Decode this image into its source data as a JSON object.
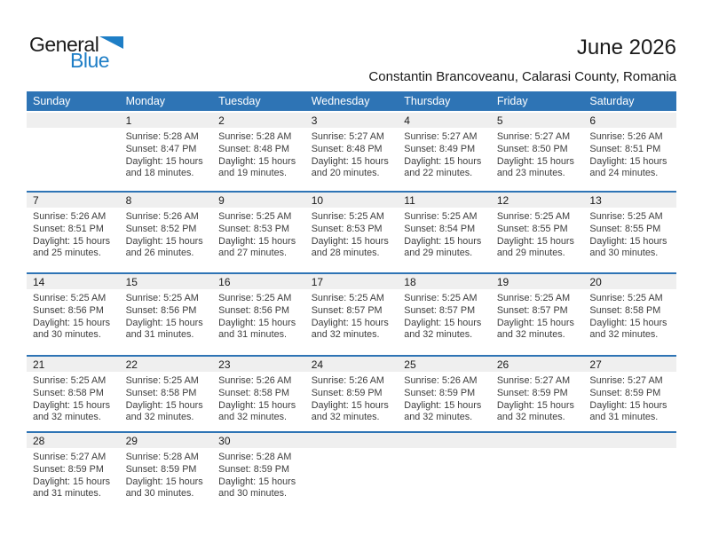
{
  "logo": {
    "general": "General",
    "blue": "Blue"
  },
  "header": {
    "title": "June 2026",
    "subtitle": "Constantin Brancoveanu, Calarasi County, Romania"
  },
  "colors": {
    "header_blue": "#2e74b5",
    "separator_blue": "#2e74b5",
    "band_gray": "#efefef",
    "logo_blue": "#1e7ec6",
    "text_dark": "#1a1a1a",
    "text_gray": "#3d3d3d"
  },
  "calendar": {
    "day_headers": [
      "Sunday",
      "Monday",
      "Tuesday",
      "Wednesday",
      "Thursday",
      "Friday",
      "Saturday"
    ],
    "weeks": [
      {
        "days": [
          {
            "date": "",
            "sunrise": "",
            "sunset": "",
            "daylight1": "",
            "daylight2": ""
          },
          {
            "date": "1",
            "sunrise": "Sunrise: 5:28 AM",
            "sunset": "Sunset: 8:47 PM",
            "daylight1": "Daylight: 15 hours",
            "daylight2": "and 18 minutes."
          },
          {
            "date": "2",
            "sunrise": "Sunrise: 5:28 AM",
            "sunset": "Sunset: 8:48 PM",
            "daylight1": "Daylight: 15 hours",
            "daylight2": "and 19 minutes."
          },
          {
            "date": "3",
            "sunrise": "Sunrise: 5:27 AM",
            "sunset": "Sunset: 8:48 PM",
            "daylight1": "Daylight: 15 hours",
            "daylight2": "and 20 minutes."
          },
          {
            "date": "4",
            "sunrise": "Sunrise: 5:27 AM",
            "sunset": "Sunset: 8:49 PM",
            "daylight1": "Daylight: 15 hours",
            "daylight2": "and 22 minutes."
          },
          {
            "date": "5",
            "sunrise": "Sunrise: 5:27 AM",
            "sunset": "Sunset: 8:50 PM",
            "daylight1": "Daylight: 15 hours",
            "daylight2": "and 23 minutes."
          },
          {
            "date": "6",
            "sunrise": "Sunrise: 5:26 AM",
            "sunset": "Sunset: 8:51 PM",
            "daylight1": "Daylight: 15 hours",
            "daylight2": "and 24 minutes."
          }
        ]
      },
      {
        "days": [
          {
            "date": "7",
            "sunrise": "Sunrise: 5:26 AM",
            "sunset": "Sunset: 8:51 PM",
            "daylight1": "Daylight: 15 hours",
            "daylight2": "and 25 minutes."
          },
          {
            "date": "8",
            "sunrise": "Sunrise: 5:26 AM",
            "sunset": "Sunset: 8:52 PM",
            "daylight1": "Daylight: 15 hours",
            "daylight2": "and 26 minutes."
          },
          {
            "date": "9",
            "sunrise": "Sunrise: 5:25 AM",
            "sunset": "Sunset: 8:53 PM",
            "daylight1": "Daylight: 15 hours",
            "daylight2": "and 27 minutes."
          },
          {
            "date": "10",
            "sunrise": "Sunrise: 5:25 AM",
            "sunset": "Sunset: 8:53 PM",
            "daylight1": "Daylight: 15 hours",
            "daylight2": "and 28 minutes."
          },
          {
            "date": "11",
            "sunrise": "Sunrise: 5:25 AM",
            "sunset": "Sunset: 8:54 PM",
            "daylight1": "Daylight: 15 hours",
            "daylight2": "and 29 minutes."
          },
          {
            "date": "12",
            "sunrise": "Sunrise: 5:25 AM",
            "sunset": "Sunset: 8:55 PM",
            "daylight1": "Daylight: 15 hours",
            "daylight2": "and 29 minutes."
          },
          {
            "date": "13",
            "sunrise": "Sunrise: 5:25 AM",
            "sunset": "Sunset: 8:55 PM",
            "daylight1": "Daylight: 15 hours",
            "daylight2": "and 30 minutes."
          }
        ]
      },
      {
        "days": [
          {
            "date": "14",
            "sunrise": "Sunrise: 5:25 AM",
            "sunset": "Sunset: 8:56 PM",
            "daylight1": "Daylight: 15 hours",
            "daylight2": "and 30 minutes."
          },
          {
            "date": "15",
            "sunrise": "Sunrise: 5:25 AM",
            "sunset": "Sunset: 8:56 PM",
            "daylight1": "Daylight: 15 hours",
            "daylight2": "and 31 minutes."
          },
          {
            "date": "16",
            "sunrise": "Sunrise: 5:25 AM",
            "sunset": "Sunset: 8:56 PM",
            "daylight1": "Daylight: 15 hours",
            "daylight2": "and 31 minutes."
          },
          {
            "date": "17",
            "sunrise": "Sunrise: 5:25 AM",
            "sunset": "Sunset: 8:57 PM",
            "daylight1": "Daylight: 15 hours",
            "daylight2": "and 32 minutes."
          },
          {
            "date": "18",
            "sunrise": "Sunrise: 5:25 AM",
            "sunset": "Sunset: 8:57 PM",
            "daylight1": "Daylight: 15 hours",
            "daylight2": "and 32 minutes."
          },
          {
            "date": "19",
            "sunrise": "Sunrise: 5:25 AM",
            "sunset": "Sunset: 8:57 PM",
            "daylight1": "Daylight: 15 hours",
            "daylight2": "and 32 minutes."
          },
          {
            "date": "20",
            "sunrise": "Sunrise: 5:25 AM",
            "sunset": "Sunset: 8:58 PM",
            "daylight1": "Daylight: 15 hours",
            "daylight2": "and 32 minutes."
          }
        ]
      },
      {
        "days": [
          {
            "date": "21",
            "sunrise": "Sunrise: 5:25 AM",
            "sunset": "Sunset: 8:58 PM",
            "daylight1": "Daylight: 15 hours",
            "daylight2": "and 32 minutes."
          },
          {
            "date": "22",
            "sunrise": "Sunrise: 5:25 AM",
            "sunset": "Sunset: 8:58 PM",
            "daylight1": "Daylight: 15 hours",
            "daylight2": "and 32 minutes."
          },
          {
            "date": "23",
            "sunrise": "Sunrise: 5:26 AM",
            "sunset": "Sunset: 8:58 PM",
            "daylight1": "Daylight: 15 hours",
            "daylight2": "and 32 minutes."
          },
          {
            "date": "24",
            "sunrise": "Sunrise: 5:26 AM",
            "sunset": "Sunset: 8:59 PM",
            "daylight1": "Daylight: 15 hours",
            "daylight2": "and 32 minutes."
          },
          {
            "date": "25",
            "sunrise": "Sunrise: 5:26 AM",
            "sunset": "Sunset: 8:59 PM",
            "daylight1": "Daylight: 15 hours",
            "daylight2": "and 32 minutes."
          },
          {
            "date": "26",
            "sunrise": "Sunrise: 5:27 AM",
            "sunset": "Sunset: 8:59 PM",
            "daylight1": "Daylight: 15 hours",
            "daylight2": "and 32 minutes."
          },
          {
            "date": "27",
            "sunrise": "Sunrise: 5:27 AM",
            "sunset": "Sunset: 8:59 PM",
            "daylight1": "Daylight: 15 hours",
            "daylight2": "and 31 minutes."
          }
        ]
      },
      {
        "days": [
          {
            "date": "28",
            "sunrise": "Sunrise: 5:27 AM",
            "sunset": "Sunset: 8:59 PM",
            "daylight1": "Daylight: 15 hours",
            "daylight2": "and 31 minutes."
          },
          {
            "date": "29",
            "sunrise": "Sunrise: 5:28 AM",
            "sunset": "Sunset: 8:59 PM",
            "daylight1": "Daylight: 15 hours",
            "daylight2": "and 30 minutes."
          },
          {
            "date": "30",
            "sunrise": "Sunrise: 5:28 AM",
            "sunset": "Sunset: 8:59 PM",
            "daylight1": "Daylight: 15 hours",
            "daylight2": "and 30 minutes."
          },
          {
            "date": "",
            "sunrise": "",
            "sunset": "",
            "daylight1": "",
            "daylight2": ""
          },
          {
            "date": "",
            "sunrise": "",
            "sunset": "",
            "daylight1": "",
            "daylight2": ""
          },
          {
            "date": "",
            "sunrise": "",
            "sunset": "",
            "daylight1": "",
            "daylight2": ""
          },
          {
            "date": "",
            "sunrise": "",
            "sunset": "",
            "daylight1": "",
            "daylight2": ""
          }
        ]
      }
    ]
  }
}
